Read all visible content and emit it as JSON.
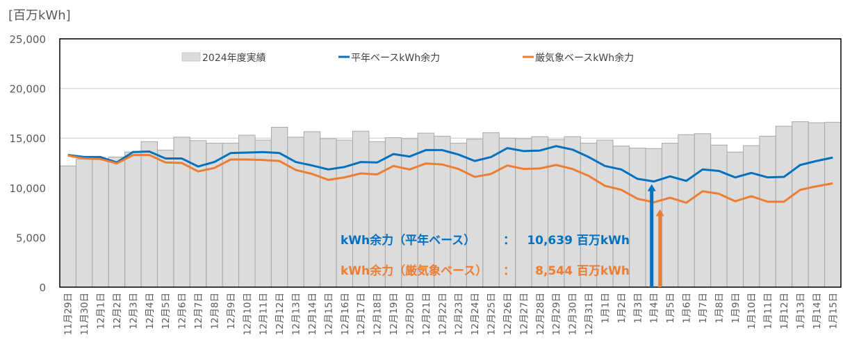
{
  "chart_data": {
    "type": "bar+line",
    "unit_label": "[百万kWh]",
    "ylim": [
      0,
      25000
    ],
    "yticks": [
      "0",
      "5,000",
      "10,000",
      "15,000",
      "20,000",
      "25,000"
    ],
    "grid": true,
    "legend_position": "top-inside",
    "categories": [
      "11月29日",
      "11月30日",
      "12月1日",
      "12月2日",
      "12月3日",
      "12月4日",
      "12月5日",
      "12月6日",
      "12月7日",
      "12月8日",
      "12月9日",
      "12月10日",
      "12月11日",
      "12月12日",
      "12月13日",
      "12月14日",
      "12月15日",
      "12月16日",
      "12月17日",
      "12月18日",
      "12月19日",
      "12月20日",
      "12月21日",
      "12月22日",
      "12月23日",
      "12月24日",
      "12月25日",
      "12月26日",
      "12月27日",
      "12月28日",
      "12月29日",
      "12月30日",
      "12月31日",
      "1月1日",
      "1月2日",
      "1月3日",
      "1月4日",
      "1月5日",
      "1月6日",
      "1月7日",
      "1月8日",
      "1月9日",
      "1月10日",
      "1月11日",
      "1月12日",
      "1月13日",
      "1月14日",
      "1月15日"
    ],
    "series": [
      {
        "name": "2024年度実績",
        "kind": "bar",
        "color": "#dcdcdc",
        "values": [
          12200,
          12900,
          12900,
          13100,
          13600,
          14650,
          13800,
          15100,
          14750,
          14500,
          14500,
          15300,
          14800,
          16100,
          15100,
          15650,
          14950,
          14800,
          15700,
          14650,
          15050,
          14950,
          15500,
          15200,
          14500,
          14900,
          15550,
          15000,
          14950,
          15150,
          14850,
          15150,
          14500,
          14800,
          14200,
          14000,
          13950,
          14500,
          15350,
          15450,
          14300,
          13600,
          14250,
          15200,
          16200,
          16650,
          16550,
          16600
        ]
      },
      {
        "name": "平年ベースkWh余力",
        "kind": "line",
        "color": "#0070c0",
        "values": [
          13300,
          13100,
          13100,
          12550,
          13600,
          13650,
          12950,
          12950,
          12150,
          12600,
          13500,
          13550,
          13600,
          13500,
          12600,
          12250,
          11850,
          12100,
          12600,
          12550,
          13400,
          13150,
          13800,
          13800,
          13350,
          12700,
          13100,
          14000,
          13700,
          13750,
          14200,
          13850,
          13100,
          12200,
          11850,
          10900,
          10639,
          11150,
          10700,
          11850,
          11700,
          11050,
          11500,
          11050,
          11100,
          12300,
          12700,
          13050
        ]
      },
      {
        "name": "厳気象ベースkWh余力",
        "kind": "line",
        "color": "#ed7d31",
        "values": [
          13250,
          12950,
          12900,
          12450,
          13300,
          13300,
          12550,
          12500,
          11650,
          12000,
          12850,
          12850,
          12800,
          12700,
          11800,
          11400,
          10800,
          11050,
          11450,
          11350,
          12200,
          11850,
          12450,
          12350,
          11900,
          11100,
          11400,
          12250,
          11900,
          11950,
          12300,
          11900,
          11200,
          10200,
          9800,
          8900,
          8544,
          9000,
          8500,
          9650,
          9400,
          8650,
          9150,
          8600,
          8600,
          9800,
          10150,
          10450
        ]
      }
    ],
    "annotations": [
      {
        "label": "kWh余力（平年ベース）",
        "sep": "：",
        "value": "10,639 百万kWh",
        "color": "#0070c0",
        "category": "1月4日",
        "arrow_value": 10639
      },
      {
        "label": "kWh余力（厳気象ベース）",
        "sep": "：",
        "value": "8,544 百万kWh",
        "color": "#ed7d31",
        "category": "1月4日",
        "arrow_value": 8544
      }
    ]
  }
}
